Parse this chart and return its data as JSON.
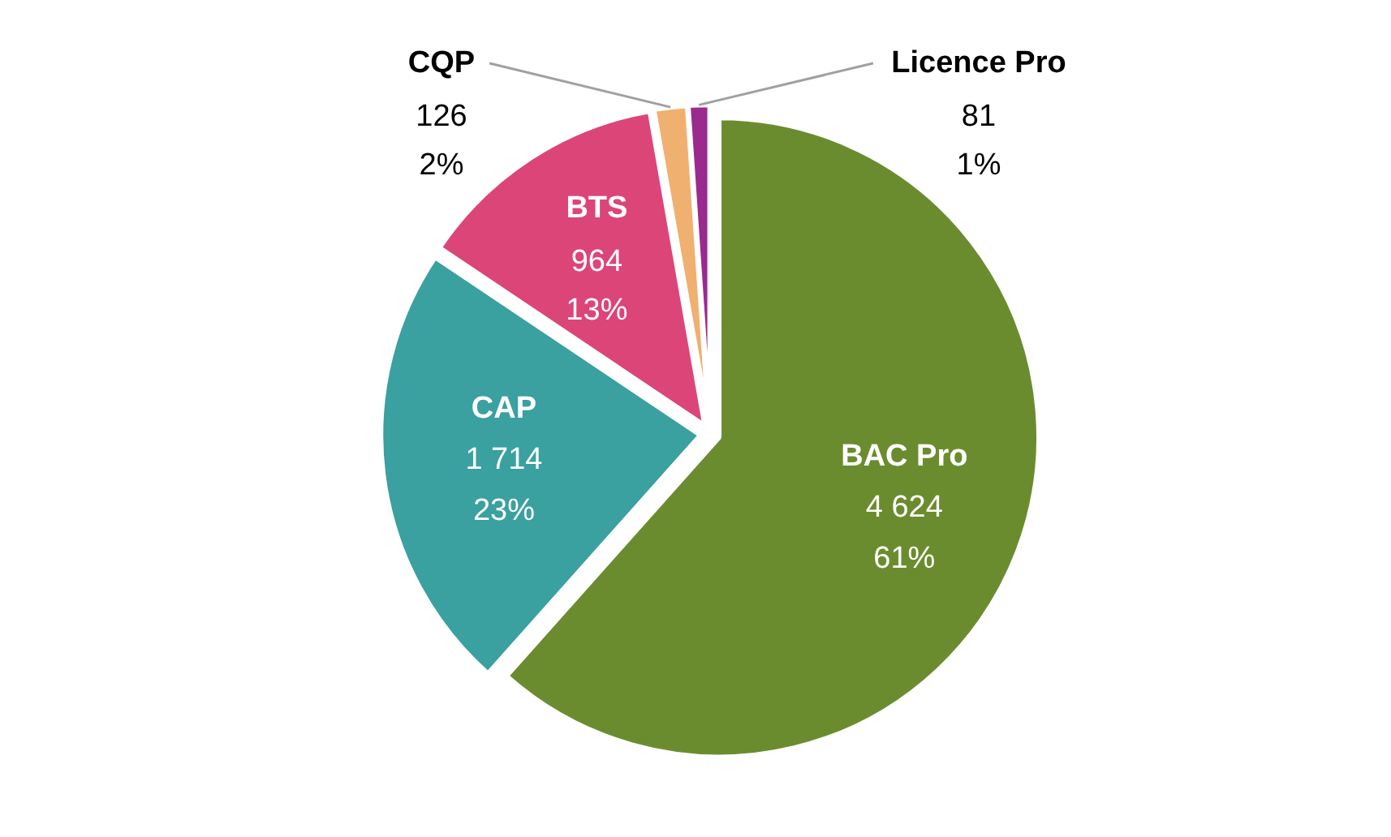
{
  "chart_data": {
    "type": "pie",
    "categories": [
      "BAC Pro",
      "CAP",
      "BTS",
      "CQP",
      "Licence Pro"
    ],
    "values": [
      4624,
      1714,
      964,
      126,
      81
    ],
    "colors": [
      "#6b8c2e",
      "#3aa0a0",
      "#dc4577",
      "#f0b070",
      "#9b2a8f"
    ],
    "value_labels": [
      "4 624\n61%",
      "1 714\n23%",
      "964\n13%",
      "126\n2%",
      "81\n1%"
    ]
  }
}
